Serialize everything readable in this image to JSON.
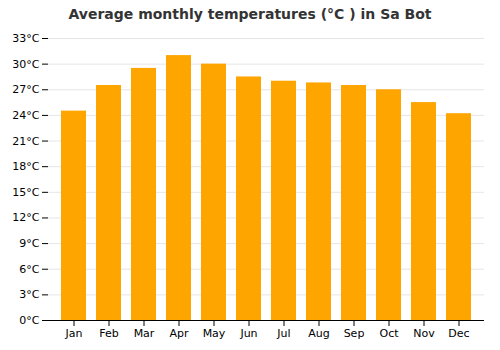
{
  "chart_data": {
    "type": "bar",
    "title": "Average monthly temperatures (°C ) in Sa Bot",
    "categories": [
      "Jan",
      "Feb",
      "Mar",
      "Apr",
      "May",
      "Jun",
      "Jul",
      "Aug",
      "Sep",
      "Oct",
      "Nov",
      "Dec"
    ],
    "values": [
      24.5,
      27.5,
      29.5,
      31.0,
      30.0,
      28.5,
      28.0,
      27.8,
      27.5,
      27.0,
      25.5,
      24.2
    ],
    "color": "#FFA500",
    "ylim": [
      0,
      33
    ],
    "yticks": [
      {
        "value": 0,
        "label": "0°C"
      },
      {
        "value": 3,
        "label": "3°C"
      },
      {
        "value": 6,
        "label": "6°C"
      },
      {
        "value": 9,
        "label": "9°C"
      },
      {
        "value": 12,
        "label": "12°C"
      },
      {
        "value": 15,
        "label": "15°C"
      },
      {
        "value": 18,
        "label": "18°C"
      },
      {
        "value": 21,
        "label": "21°C"
      },
      {
        "value": 24,
        "label": "24°C"
      },
      {
        "value": 27,
        "label": "27°C"
      },
      {
        "value": 30,
        "label": "30°C"
      },
      {
        "value": 33,
        "label": "33°C"
      }
    ],
    "grid": true
  }
}
